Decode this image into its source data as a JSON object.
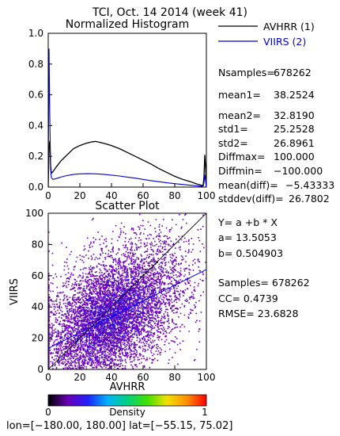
{
  "header": {
    "title": "TCI,  Oct. 14 2014 (week 41)"
  },
  "histogram": {
    "title": "Normalized Histogram",
    "legend": [
      {
        "label": "AVHRR (1)",
        "color": "#000000"
      },
      {
        "label": "VIIRS (2)",
        "color": "#0000cc"
      }
    ]
  },
  "stats": [
    {
      "label": "Nsamples=",
      "value": "678262"
    },
    {
      "label": "mean1=",
      "value": "38.2524"
    },
    {
      "label": "mean2=",
      "value": "32.8190"
    },
    {
      "label": "std1=",
      "value": "25.2528"
    },
    {
      "label": "std2=",
      "value": "26.8961"
    },
    {
      "label": "Diffmax=",
      "value": "100.000"
    },
    {
      "label": "Diffmin=",
      "value": "−100.000"
    },
    {
      "label": "mean(diff)=",
      "value": "−5.43333"
    },
    {
      "label": "stddev(diff)=",
      "value": "26.7802"
    }
  ],
  "scatter": {
    "title": "Scatter Plot",
    "regression": [
      "Y= a +b * X",
      "a= 13.5053",
      "b= 0.504903"
    ],
    "summary": [
      "Samples= 678262",
      "CC=  0.4739",
      "RMSE= 23.6828"
    ]
  },
  "colorbar": {
    "label": "Density",
    "min": "0",
    "max": "1",
    "colors": [
      "#000000",
      "#6a00b8",
      "#2020ff",
      "#00b4ff",
      "#00d080",
      "#40e000",
      "#f0e000",
      "#ff9000",
      "#ff0000"
    ]
  },
  "footer": {
    "text": "lon=[−180.00, 180.00] lat=[−55.15, 75.02]"
  },
  "chart_data": [
    {
      "type": "line",
      "title": "Normalized Histogram",
      "xlabel": "",
      "ylabel": "",
      "xlim": [
        0,
        100
      ],
      "ylim": [
        0,
        1.0
      ],
      "xticks": [
        0,
        20,
        40,
        60,
        80,
        100
      ],
      "yticks": [
        0.0,
        0.2,
        0.4,
        0.6,
        0.8,
        1.0
      ],
      "series": [
        {
          "name": "AVHRR (1)",
          "color": "#000000",
          "x": [
            0,
            0.5,
            1,
            1.5,
            2,
            3,
            5,
            8,
            10,
            13,
            16,
            20,
            24,
            28,
            30,
            33,
            36,
            40,
            45,
            50,
            55,
            60,
            65,
            70,
            75,
            80,
            85,
            90,
            94,
            96,
            97,
            98,
            98.5,
            99,
            99.5,
            100
          ],
          "y": [
            0.0,
            0.26,
            0.3,
            0.14,
            0.09,
            0.1,
            0.13,
            0.17,
            0.19,
            0.22,
            0.25,
            0.27,
            0.285,
            0.295,
            0.297,
            0.29,
            0.282,
            0.27,
            0.25,
            0.225,
            0.2,
            0.175,
            0.15,
            0.12,
            0.095,
            0.07,
            0.05,
            0.035,
            0.02,
            0.015,
            0.01,
            0.015,
            0.07,
            0.21,
            0.13,
            0.0
          ]
        },
        {
          "name": "VIIRS (2)",
          "color": "#0000cc",
          "x": [
            0,
            0.5,
            1,
            1.5,
            2,
            3,
            5,
            8,
            12,
            16,
            20,
            25,
            30,
            35,
            40,
            45,
            50,
            55,
            60,
            65,
            70,
            75,
            80,
            85,
            90,
            94,
            96,
            97,
            98,
            98.5,
            99,
            99.5,
            100
          ],
          "y": [
            0.0,
            0.9,
            0.45,
            0.12,
            0.06,
            0.05,
            0.055,
            0.065,
            0.075,
            0.082,
            0.086,
            0.087,
            0.086,
            0.083,
            0.078,
            0.072,
            0.065,
            0.058,
            0.05,
            0.042,
            0.035,
            0.028,
            0.022,
            0.017,
            0.012,
            0.008,
            0.006,
            0.005,
            0.006,
            0.03,
            0.08,
            0.04,
            0.0
          ]
        }
      ]
    },
    {
      "type": "scatter",
      "title": "Scatter Plot",
      "xlabel": "AVHRR",
      "ylabel": "VIIRS",
      "xlim": [
        0,
        100
      ],
      "ylim": [
        0,
        100
      ],
      "xticks": [
        0,
        20,
        40,
        60,
        80,
        100
      ],
      "yticks": [
        0,
        20,
        40,
        60,
        80,
        100
      ],
      "samples": 678262,
      "regression": {
        "a": 13.5053,
        "b": 0.504903
      },
      "cc": 0.4739,
      "rmse": 23.6828,
      "density_scale": [
        0,
        1
      ]
    }
  ]
}
